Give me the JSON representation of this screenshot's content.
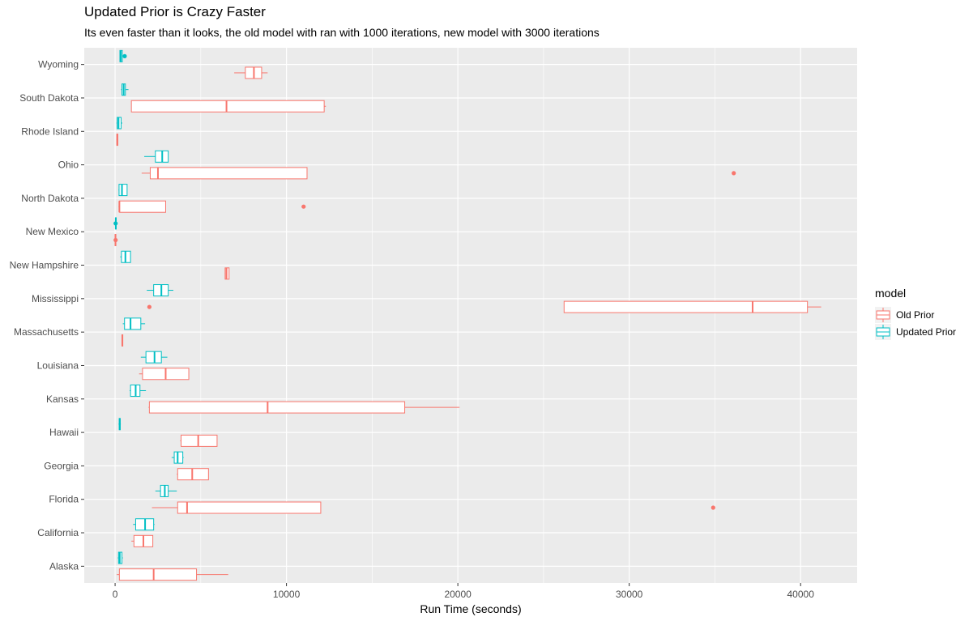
{
  "chart_data": {
    "type": "boxplot",
    "title": "Updated Prior is Crazy Faster",
    "subtitle": "Its even faster than it looks, the old model with ran with 1000 iterations, new model with 3000 iterations",
    "xlabel": "Run Time (seconds)",
    "ylabel": "",
    "xlim": [
      -1800,
      43300
    ],
    "xticks": [
      0,
      10000,
      20000,
      30000,
      40000
    ],
    "grid": true,
    "legend": {
      "title": "model",
      "position": "right"
    },
    "categories": [
      "Alaska",
      "California",
      "Florida",
      "Georgia",
      "Hawaii",
      "Kansas",
      "Louisiana",
      "Massachusetts",
      "Mississippi",
      "New Hampshire",
      "New Mexico",
      "North Dakota",
      "Ohio",
      "Rhode Island",
      "South Dakota",
      "Wyoming"
    ],
    "series": [
      {
        "name": "Old Prior",
        "color": "#F8766D",
        "boxes": [
          {
            "min": 100,
            "q1": 250,
            "median": 2250,
            "q3": 4750,
            "max": 6600,
            "outliers": []
          },
          {
            "min": 950,
            "q1": 1100,
            "median": 1650,
            "q3": 2200,
            "max": 2200,
            "outliers": []
          },
          {
            "min": 2150,
            "q1": 3650,
            "median": 4200,
            "q3": 12000,
            "max": 12000,
            "outliers": [
              34900
            ]
          },
          {
            "min": 3600,
            "q1": 3650,
            "median": 4500,
            "q3": 5450,
            "max": 5450,
            "outliers": []
          },
          {
            "min": 3800,
            "q1": 3850,
            "median": 4850,
            "q3": 5950,
            "max": 5950,
            "outliers": []
          },
          {
            "min": 1950,
            "q1": 2000,
            "median": 8900,
            "q3": 16900,
            "max": 20100,
            "outliers": []
          },
          {
            "min": 1400,
            "q1": 1600,
            "median": 2950,
            "q3": 4300,
            "max": 4300,
            "outliers": []
          },
          {
            "min": 380,
            "q1": 400,
            "median": 420,
            "q3": 450,
            "max": 470,
            "outliers": []
          },
          {
            "min": 26200,
            "q1": 26200,
            "median": 37200,
            "q3": 40400,
            "max": 41200,
            "outliers": [
              2000
            ]
          },
          {
            "min": 6400,
            "q1": 6420,
            "median": 6500,
            "q3": 6650,
            "max": 6650,
            "outliers": []
          },
          {
            "min": -20,
            "q1": 0,
            "median": 20,
            "q3": 40,
            "max": 60,
            "outliers": [
              30
            ]
          },
          {
            "min": 200,
            "q1": 250,
            "median": 250,
            "q3": 2950,
            "max": 2950,
            "outliers": [
              11000
            ]
          },
          {
            "min": 1550,
            "q1": 2050,
            "median": 2500,
            "q3": 11200,
            "max": 11200,
            "outliers": [
              36100
            ]
          },
          {
            "min": 80,
            "q1": 100,
            "median": 130,
            "q3": 160,
            "max": 180,
            "outliers": []
          },
          {
            "min": 950,
            "q1": 950,
            "median": 6500,
            "q3": 12200,
            "max": 12300,
            "outliers": []
          },
          {
            "min": 6950,
            "q1": 7600,
            "median": 8100,
            "q3": 8550,
            "max": 8900,
            "outliers": []
          }
        ]
      },
      {
        "name": "Updated Prior",
        "color": "#00BFC4",
        "boxes": [
          {
            "min": 150,
            "q1": 200,
            "median": 270,
            "q3": 400,
            "max": 450,
            "outliers": []
          },
          {
            "min": 1050,
            "q1": 1200,
            "median": 1750,
            "q3": 2250,
            "max": 2300,
            "outliers": []
          },
          {
            "min": 2350,
            "q1": 2650,
            "median": 2900,
            "q3": 3100,
            "max": 3600,
            "outliers": []
          },
          {
            "min": 3300,
            "q1": 3450,
            "median": 3650,
            "q3": 3950,
            "max": 4000,
            "outliers": []
          },
          {
            "min": 200,
            "q1": 240,
            "median": 270,
            "q3": 300,
            "max": 330,
            "outliers": []
          },
          {
            "min": 850,
            "q1": 900,
            "median": 1200,
            "q3": 1450,
            "max": 1800,
            "outliers": []
          },
          {
            "min": 1500,
            "q1": 1800,
            "median": 2300,
            "q3": 2700,
            "max": 3050,
            "outliers": []
          },
          {
            "min": 450,
            "q1": 550,
            "median": 900,
            "q3": 1500,
            "max": 1750,
            "outliers": []
          },
          {
            "min": 1850,
            "q1": 2250,
            "median": 2700,
            "q3": 3100,
            "max": 3400,
            "outliers": []
          },
          {
            "min": 300,
            "q1": 370,
            "median": 600,
            "q3": 900,
            "max": 900,
            "outliers": []
          },
          {
            "min": 0,
            "q1": 20,
            "median": 40,
            "q3": 60,
            "max": 80,
            "outliers": [
              30
            ]
          },
          {
            "min": 200,
            "q1": 230,
            "median": 400,
            "q3": 700,
            "max": 700,
            "outliers": []
          },
          {
            "min": 1700,
            "q1": 2350,
            "median": 2750,
            "q3": 3100,
            "max": 3100,
            "outliers": []
          },
          {
            "min": 80,
            "q1": 120,
            "median": 200,
            "q3": 350,
            "max": 420,
            "outliers": []
          },
          {
            "min": 350,
            "q1": 400,
            "median": 500,
            "q3": 600,
            "max": 780,
            "outliers": []
          },
          {
            "min": 280,
            "q1": 280,
            "median": 330,
            "q3": 420,
            "max": 420,
            "outliers": [
              560
            ]
          }
        ]
      }
    ]
  }
}
